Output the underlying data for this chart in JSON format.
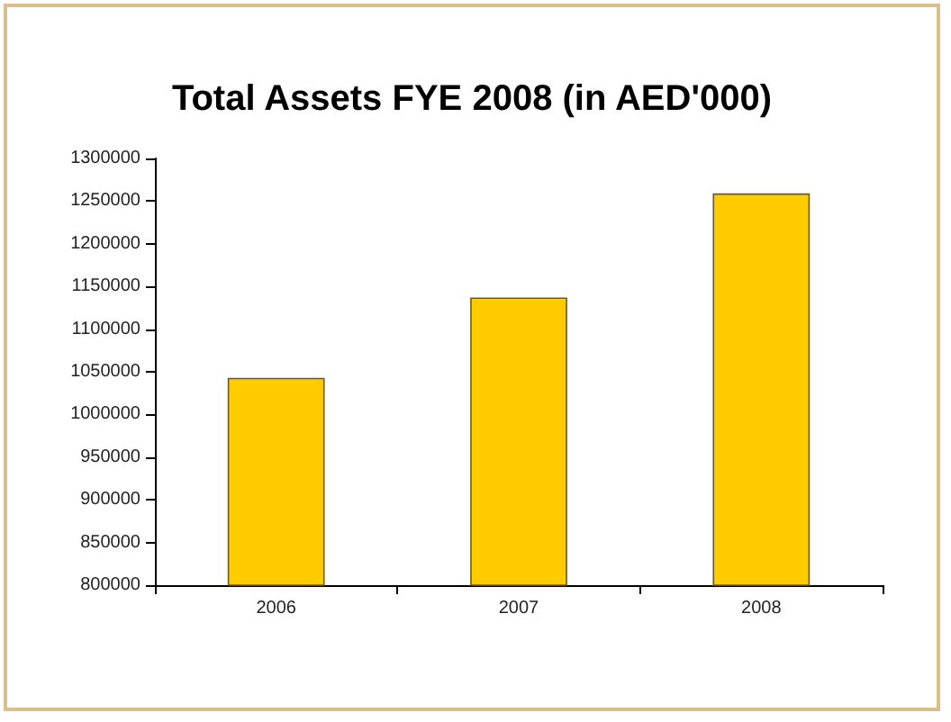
{
  "chart_data": {
    "type": "bar",
    "title": "Total Assets FYE 2008 (in AED'000)",
    "categories": [
      "2006",
      "2007",
      "2008"
    ],
    "values": [
      1043000,
      1137000,
      1259000
    ],
    "color": "#ffcc00",
    "ylim": [
      800000,
      1300000
    ],
    "yticks": [
      800000,
      850000,
      900000,
      950000,
      1000000,
      1050000,
      1100000,
      1150000,
      1200000,
      1250000,
      1300000
    ],
    "grid": false
  }
}
